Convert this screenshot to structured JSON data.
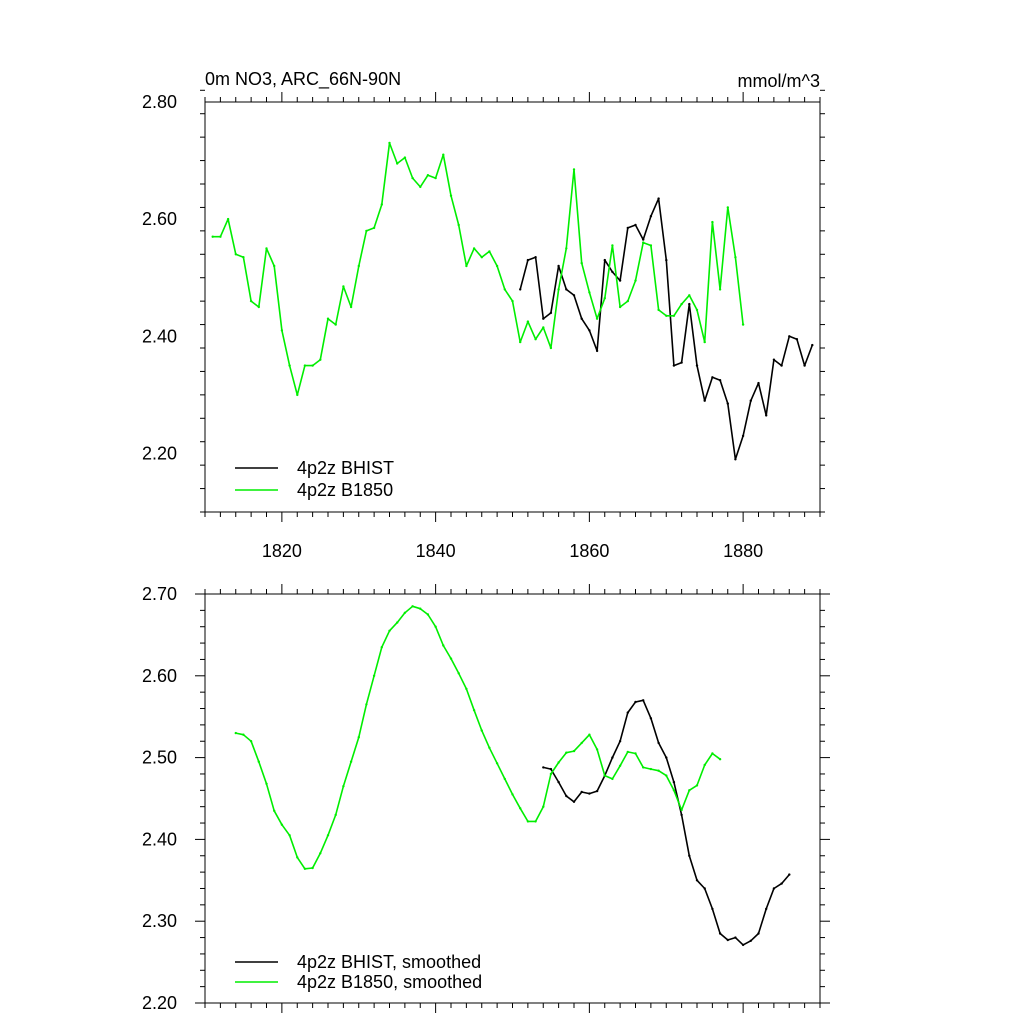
{
  "chart_data": [
    {
      "type": "line",
      "title": "0m NO3, ARC_66N-90N",
      "units": "mmol/m^3",
      "xlim": [
        1810,
        1890
      ],
      "ylim": [
        2.1,
        2.8
      ],
      "xticks": [
        1820,
        1840,
        1860,
        1880
      ],
      "xtick_labels": [
        "1820",
        "1840",
        "1860",
        "1880"
      ],
      "yticks": [
        2.2,
        2.4,
        2.6,
        2.8
      ],
      "ytick_labels": [
        "2.20",
        "2.40",
        "2.60",
        "2.80"
      ],
      "legend_position": "bottom-left",
      "series": [
        {
          "name": "4p2z BHIST",
          "color": "#000000",
          "x": [
            1851,
            1852,
            1853,
            1854,
            1855,
            1856,
            1857,
            1858,
            1859,
            1860,
            1861,
            1862,
            1863,
            1864,
            1865,
            1866,
            1867,
            1868,
            1869,
            1870,
            1871,
            1872,
            1873,
            1874,
            1875,
            1876,
            1877,
            1878,
            1879,
            1880,
            1881,
            1882,
            1883,
            1884,
            1885,
            1886,
            1887,
            1888,
            1889
          ],
          "y": [
            2.48,
            2.53,
            2.535,
            2.43,
            2.44,
            2.52,
            2.48,
            2.47,
            2.43,
            2.41,
            2.375,
            2.53,
            2.51,
            2.495,
            2.585,
            2.59,
            2.565,
            2.605,
            2.635,
            2.53,
            2.35,
            2.355,
            2.455,
            2.35,
            2.29,
            2.33,
            2.325,
            2.285,
            2.19,
            2.23,
            2.29,
            2.32,
            2.265,
            2.36,
            2.35,
            2.4,
            2.395,
            2.35,
            2.385
          ]
        },
        {
          "name": "4p2z B1850",
          "color": "#00ee00",
          "x": [
            1811,
            1812,
            1813,
            1814,
            1815,
            1816,
            1817,
            1818,
            1819,
            1820,
            1821,
            1822,
            1823,
            1824,
            1825,
            1826,
            1827,
            1828,
            1829,
            1830,
            1831,
            1832,
            1833,
            1834,
            1835,
            1836,
            1837,
            1838,
            1839,
            1840,
            1841,
            1842,
            1843,
            1844,
            1845,
            1846,
            1847,
            1848,
            1849,
            1850,
            1851,
            1852,
            1853,
            1854,
            1855,
            1856,
            1857,
            1858,
            1859,
            1860,
            1861,
            1862,
            1863,
            1864,
            1865,
            1866,
            1867,
            1868,
            1869,
            1870,
            1871,
            1872,
            1873,
            1874,
            1875,
            1876,
            1877,
            1878,
            1879,
            1880
          ],
          "y": [
            2.57,
            2.57,
            2.6,
            2.54,
            2.535,
            2.46,
            2.45,
            2.55,
            2.52,
            2.41,
            2.35,
            2.3,
            2.35,
            2.35,
            2.36,
            2.43,
            2.42,
            2.485,
            2.45,
            2.52,
            2.58,
            2.585,
            2.625,
            2.73,
            2.695,
            2.705,
            2.67,
            2.655,
            2.675,
            2.67,
            2.71,
            2.64,
            2.59,
            2.52,
            2.55,
            2.535,
            2.545,
            2.52,
            2.48,
            2.46,
            2.39,
            2.425,
            2.395,
            2.415,
            2.38,
            2.48,
            2.55,
            2.685,
            2.525,
            2.475,
            2.43,
            2.465,
            2.555,
            2.45,
            2.46,
            2.495,
            2.56,
            2.555,
            2.445,
            2.435,
            2.435,
            2.455,
            2.47,
            2.445,
            2.39,
            2.595,
            2.48,
            2.62,
            2.535,
            2.42
          ]
        }
      ]
    },
    {
      "type": "line",
      "xlim": [
        1810,
        1890
      ],
      "ylim": [
        2.2,
        2.7
      ],
      "xticks": [
        1820,
        1840,
        1860,
        1880
      ],
      "yticks": [
        2.2,
        2.3,
        2.4,
        2.5,
        2.6,
        2.7
      ],
      "ytick_labels": [
        "2.20",
        "2.30",
        "2.40",
        "2.50",
        "2.60",
        "2.70"
      ],
      "legend_position": "bottom-left",
      "series": [
        {
          "name": "4p2z BHIST, smoothed",
          "color": "#000000",
          "x": [
            1854,
            1855,
            1856,
            1857,
            1858,
            1859,
            1860,
            1861,
            1862,
            1863,
            1864,
            1865,
            1866,
            1867,
            1868,
            1869,
            1870,
            1871,
            1872,
            1873,
            1874,
            1875,
            1876,
            1877,
            1878,
            1879,
            1880,
            1881,
            1882,
            1883,
            1884,
            1885,
            1886
          ],
          "y": [
            2.488,
            2.486,
            2.47,
            2.453,
            2.446,
            2.458,
            2.456,
            2.459,
            2.478,
            2.5,
            2.52,
            2.555,
            2.568,
            2.57,
            2.548,
            2.518,
            2.5,
            2.47,
            2.43,
            2.38,
            2.35,
            2.34,
            2.315,
            2.285,
            2.277,
            2.28,
            2.271,
            2.276,
            2.285,
            2.315,
            2.34,
            2.346,
            2.357
          ]
        },
        {
          "name": "4p2z B1850, smoothed",
          "color": "#00ee00",
          "x": [
            1814,
            1815,
            1816,
            1817,
            1818,
            1819,
            1820,
            1821,
            1822,
            1823,
            1824,
            1825,
            1826,
            1827,
            1828,
            1829,
            1830,
            1831,
            1832,
            1833,
            1834,
            1835,
            1836,
            1837,
            1838,
            1839,
            1840,
            1841,
            1842,
            1843,
            1844,
            1845,
            1846,
            1847,
            1848,
            1849,
            1850,
            1851,
            1852,
            1853,
            1854,
            1855,
            1856,
            1857,
            1858,
            1859,
            1860,
            1861,
            1862,
            1863,
            1864,
            1865,
            1866,
            1867,
            1868,
            1869,
            1870,
            1871,
            1872,
            1873,
            1874,
            1875,
            1876,
            1877
          ],
          "y": [
            2.53,
            2.528,
            2.52,
            2.495,
            2.468,
            2.435,
            2.418,
            2.405,
            2.378,
            2.364,
            2.365,
            2.383,
            2.405,
            2.43,
            2.465,
            2.495,
            2.525,
            2.565,
            2.6,
            2.635,
            2.655,
            2.665,
            2.677,
            2.685,
            2.682,
            2.675,
            2.66,
            2.637,
            2.621,
            2.603,
            2.584,
            2.558,
            2.533,
            2.512,
            2.493,
            2.474,
            2.455,
            2.438,
            2.422,
            2.422,
            2.44,
            2.48,
            2.494,
            2.506,
            2.508,
            2.518,
            2.528,
            2.51,
            2.478,
            2.474,
            2.49,
            2.507,
            2.505,
            2.488,
            2.486,
            2.484,
            2.478,
            2.46,
            2.436,
            2.46,
            2.466,
            2.491,
            2.505,
            2.498
          ]
        }
      ]
    }
  ]
}
